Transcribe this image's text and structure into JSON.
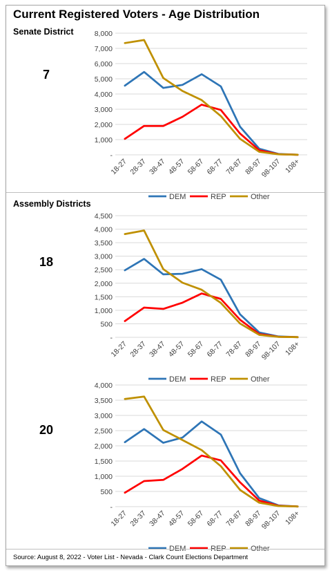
{
  "title": "Current Registered Voters - Age Distribution",
  "sections": {
    "senate_label": "Senate District",
    "assembly_label": "Assembly Districts"
  },
  "source": "Source: August 8, 2022 - Voter List - Nevada - Clark Count Elections Department",
  "colors": {
    "DEM": "#2e75b6",
    "REP": "#ff0000",
    "Other": "#bf9000"
  },
  "chart_data": [
    {
      "type": "line",
      "district": "7",
      "categories": [
        "18-27",
        "28-37",
        "38-47",
        "48-57",
        "58-67",
        "68-77",
        "78-87",
        "88-97",
        "98-107",
        "108+"
      ],
      "ylim": [
        0,
        8000
      ],
      "yticks": [
        "-",
        "1,000",
        "2,000",
        "3,000",
        "4,000",
        "5,000",
        "6,000",
        "7,000",
        "8,000"
      ],
      "legend_position": "bottom",
      "series": [
        {
          "name": "DEM",
          "values": [
            4550,
            5450,
            4400,
            4600,
            5300,
            4500,
            1850,
            400,
            60,
            5
          ]
        },
        {
          "name": "REP",
          "values": [
            1050,
            1900,
            1900,
            2500,
            3300,
            2950,
            1400,
            300,
            40,
            5
          ]
        },
        {
          "name": "Other",
          "values": [
            7350,
            7550,
            5050,
            4200,
            3600,
            2550,
            1050,
            200,
            30,
            5
          ]
        }
      ]
    },
    {
      "type": "line",
      "district": "18",
      "categories": [
        "18-27",
        "28-37",
        "38-47",
        "48-57",
        "58-67",
        "68-77",
        "78-87",
        "88-97",
        "98-107",
        "108+"
      ],
      "ylim": [
        0,
        4500
      ],
      "yticks": [
        "-",
        "500",
        "1,000",
        "1,500",
        "2,000",
        "2,500",
        "3,000",
        "3,500",
        "4,000",
        "4,500"
      ],
      "legend_position": "bottom",
      "series": [
        {
          "name": "DEM",
          "values": [
            2480,
            2900,
            2330,
            2350,
            2520,
            2130,
            850,
            180,
            30,
            5
          ]
        },
        {
          "name": "REP",
          "values": [
            600,
            1100,
            1050,
            1280,
            1620,
            1420,
            650,
            120,
            20,
            5
          ]
        },
        {
          "name": "Other",
          "values": [
            3820,
            3950,
            2520,
            2020,
            1760,
            1270,
            510,
            90,
            15,
            5
          ]
        }
      ]
    },
    {
      "type": "line",
      "district": "20",
      "categories": [
        "18-27",
        "28-37",
        "38-47",
        "48-57",
        "58-67",
        "68-77",
        "78-87",
        "88-97",
        "98-107",
        "108+"
      ],
      "ylim": [
        0,
        4000
      ],
      "yticks": [
        "-",
        "500",
        "1,000",
        "1,500",
        "2,000",
        "2,500",
        "3,000",
        "3,500",
        "4,000"
      ],
      "legend_position": "bottom",
      "series": [
        {
          "name": "DEM",
          "values": [
            2120,
            2550,
            2100,
            2270,
            2800,
            2370,
            1100,
            280,
            40,
            5
          ]
        },
        {
          "name": "REP",
          "values": [
            460,
            840,
            880,
            1240,
            1680,
            1520,
            800,
            200,
            30,
            5
          ]
        },
        {
          "name": "Other",
          "values": [
            3540,
            3620,
            2520,
            2190,
            1860,
            1330,
            550,
            130,
            20,
            5
          ]
        }
      ]
    }
  ]
}
